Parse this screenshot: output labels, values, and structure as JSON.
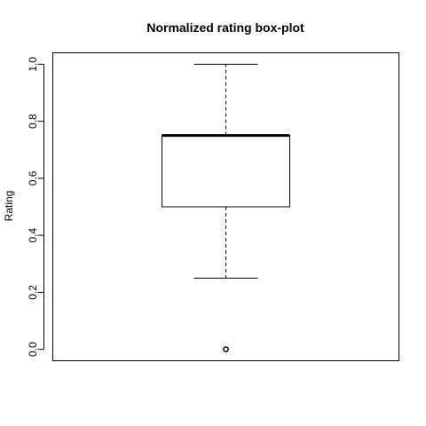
{
  "chart_data": {
    "type": "boxplot",
    "title": "Normalized rating box-plot",
    "xlabel": "",
    "ylabel": "Rating",
    "ylim": [
      -0.04,
      1.04
    ],
    "yticks": [
      0,
      0.2,
      0.4,
      0.6,
      0.8,
      1
    ],
    "ytick_labels": [
      "0.0",
      "0.2",
      "0.4",
      "0.6",
      "0.8",
      "1.0"
    ],
    "grid": false,
    "box": {
      "whisker_low": 0.25,
      "q1": 0.5,
      "median": 0.75,
      "q3": 0.75,
      "whisker_high": 1.0,
      "outliers": [
        0.0
      ]
    },
    "colors": {
      "line": "#000000",
      "background": "#ffffff"
    }
  }
}
